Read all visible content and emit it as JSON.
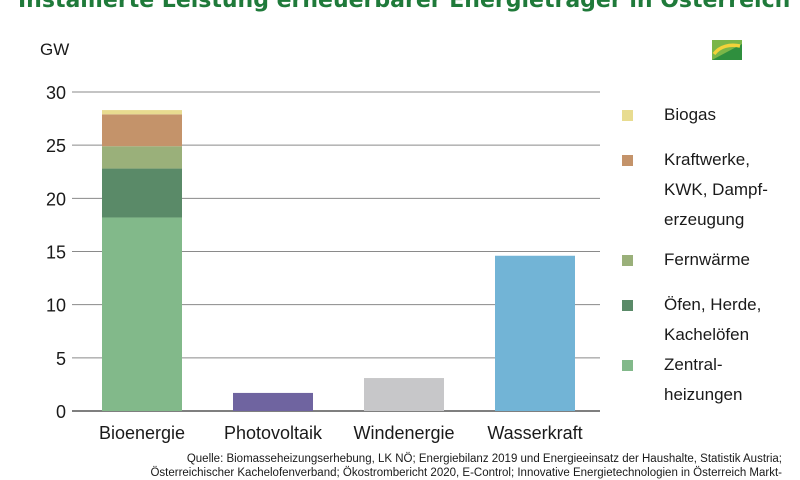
{
  "title": "Installierte Leistung erneuerbarer Energieträger in Österreich",
  "unit_label": "GW",
  "source_lines": [
    "Quelle: Biomasseheizungserhebung, LK NÖ; Energiebilanz 2019 und Energieeinsatz der Haushalte, Statistik Austria;",
    "Österreichischer Kachelofenverband; Ökostrombericht 2020, E-Control; Innovative Energietechnologien in Österreich Markt-"
  ],
  "colors": {
    "title": "#1f7a3a",
    "zentralheizungen": "#82b98a",
    "oefen": "#5a8a68",
    "fernwaerme": "#9ab07a",
    "kraftwerke": "#c4936a",
    "biogas": "#e8dc90",
    "photovoltaik": "#6f64a0",
    "windenergie": "#c7c7c9",
    "wasserkraft": "#72b4d6"
  },
  "chart_data": {
    "type": "bar",
    "stacked": true,
    "categories": [
      "Bioenergie",
      "Photovoltaik",
      "Windenergie",
      "Wasserkraft"
    ],
    "ylabel": "GW",
    "ylim": [
      0,
      30
    ],
    "yticks": [
      0,
      5,
      10,
      15,
      20,
      25,
      30
    ],
    "grid": true,
    "legend_position": "right",
    "series": [
      {
        "name": "Zentral-\nheizungen",
        "color": "#82b98a",
        "values": [
          18.2,
          0,
          0,
          0
        ]
      },
      {
        "name": "Öfen, Herde,\nKachelöfen",
        "color": "#5a8a68",
        "values": [
          4.6,
          0,
          0,
          0
        ]
      },
      {
        "name": "Fernwärme",
        "color": "#9ab07a",
        "values": [
          2.1,
          0,
          0,
          0
        ]
      },
      {
        "name": "Kraftwerke,\nKWK, Dampf-\nerzeugung",
        "color": "#c4936a",
        "values": [
          3.0,
          0,
          0,
          0
        ]
      },
      {
        "name": "Biogas",
        "color": "#e8dc90",
        "values": [
          0.4,
          0,
          0,
          0
        ]
      },
      {
        "color": "#6f64a0",
        "values": [
          0,
          1.7,
          0,
          0
        ]
      },
      {
        "color": "#c7c7c9",
        "values": [
          0,
          0,
          3.1,
          0
        ]
      },
      {
        "color": "#72b4d6",
        "values": [
          0,
          0,
          0,
          14.6
        ]
      }
    ],
    "legend": [
      "Biogas",
      "Kraftwerke,\nKWK, Dampf-\nerzeugung",
      "Fernwärme",
      "Öfen, Herde,\nKachelöfen",
      "Zentral-\nheizungen"
    ]
  }
}
